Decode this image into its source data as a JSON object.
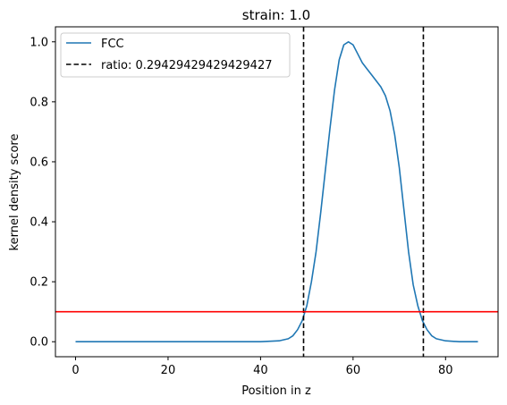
{
  "chart_data": {
    "type": "line",
    "title": "strain: 1.0",
    "xlabel": "Position in z",
    "ylabel": "kernel density score",
    "xlim": [
      -4.35,
      91.35
    ],
    "ylim": [
      -0.05,
      1.05
    ],
    "xticks": [
      0,
      20,
      40,
      60,
      80
    ],
    "yticks": [
      0.0,
      0.2,
      0.4,
      0.6,
      0.8,
      1.0
    ],
    "xtick_labels": [
      "0",
      "20",
      "40",
      "60",
      "80"
    ],
    "ytick_labels": [
      "0.0",
      "0.2",
      "0.4",
      "0.6",
      "0.8",
      "1.0"
    ],
    "grid": false,
    "legend_placement": "upper left",
    "series": [
      {
        "name": "FCC",
        "color": "#1f77b4",
        "style": "solid",
        "x": [
          0,
          10,
          20,
          30,
          40,
          44,
          46,
          47,
          48,
          49,
          50,
          51,
          52,
          53,
          54,
          55,
          56,
          57,
          58,
          59,
          60,
          61,
          62,
          63,
          64,
          65,
          66,
          67,
          68,
          69,
          70,
          71,
          72,
          73,
          74,
          75,
          76,
          77,
          78,
          80,
          83,
          87
        ],
        "y": [
          0.0,
          0.0,
          0.0,
          0.0,
          0.0,
          0.003,
          0.01,
          0.02,
          0.04,
          0.07,
          0.12,
          0.2,
          0.3,
          0.43,
          0.57,
          0.71,
          0.84,
          0.94,
          0.99,
          1.0,
          0.99,
          0.96,
          0.93,
          0.91,
          0.89,
          0.87,
          0.85,
          0.82,
          0.77,
          0.69,
          0.58,
          0.44,
          0.3,
          0.19,
          0.12,
          0.07,
          0.04,
          0.02,
          0.01,
          0.003,
          0.0,
          0.0
        ]
      }
    ],
    "vlines": {
      "name": "ratio: 0.29429429429429427",
      "color": "#000000",
      "style": "dashed",
      "x": [
        49.3,
        75.2
      ]
    },
    "hline": {
      "color": "#ff0000",
      "style": "solid",
      "y": 0.1
    }
  }
}
